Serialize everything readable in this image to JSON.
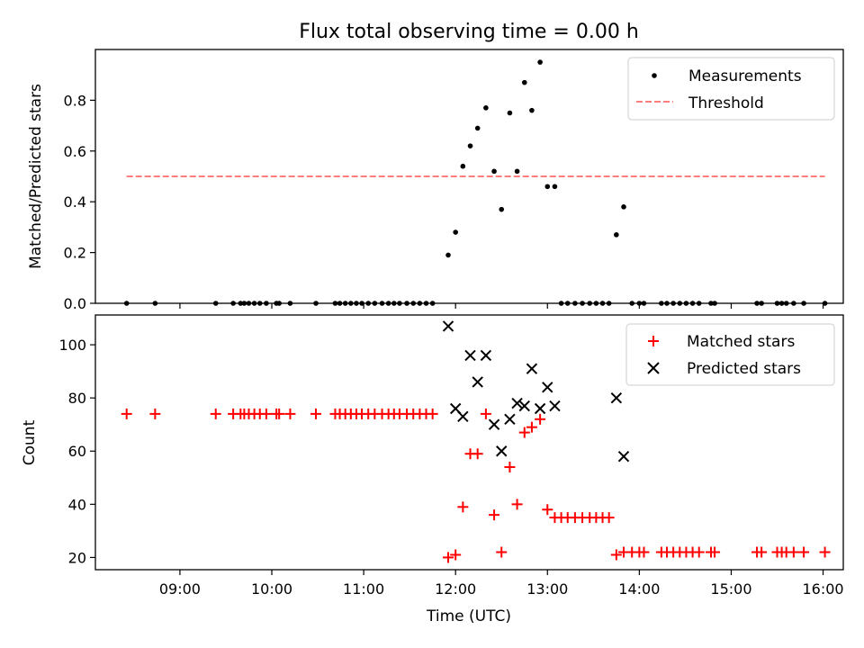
{
  "title": "Flux total observing time = 0.00 h",
  "colors": {
    "measurements": "#000000",
    "threshold": "#ff7f7f",
    "matched": "#ff0000",
    "predicted": "#000000"
  },
  "chart_data": [
    {
      "type": "scatter",
      "ylabel": "Matched/Predicted stars",
      "xlim": [
        8.08,
        16.22
      ],
      "ylim": [
        0,
        1.0
      ],
      "yticks": [
        0.0,
        0.2,
        0.4,
        0.6,
        0.8
      ],
      "ytick_labels": [
        "0.0",
        "0.2",
        "0.4",
        "0.6",
        "0.8"
      ],
      "legend": {
        "placement": "upper right",
        "entries": [
          "Measurements",
          "Threshold"
        ]
      },
      "threshold": {
        "name": "Threshold",
        "y": 0.5,
        "x_range": [
          8.42,
          16.02
        ]
      },
      "series": [
        {
          "name": "Measurements",
          "x": [
            8.42,
            8.73,
            9.39,
            9.58,
            9.66,
            9.7,
            9.75,
            9.81,
            9.87,
            9.94,
            10.05,
            10.08,
            10.2,
            10.48,
            10.69,
            10.74,
            10.8,
            10.86,
            10.92,
            10.98,
            11.05,
            11.12,
            11.2,
            11.27,
            11.33,
            11.39,
            11.47,
            11.54,
            11.61,
            11.68,
            11.75,
            11.92,
            12.0,
            12.08,
            12.16,
            12.24,
            12.33,
            12.42,
            12.5,
            12.59,
            12.67,
            12.75,
            12.83,
            12.92,
            13.0,
            13.08,
            13.15,
            13.22,
            13.3,
            13.38,
            13.46,
            13.53,
            13.6,
            13.67,
            13.75,
            13.83,
            13.92,
            14.0,
            14.05,
            14.24,
            14.3,
            14.37,
            14.44,
            14.51,
            14.58,
            14.65,
            14.78,
            14.82,
            15.28,
            15.33,
            15.5,
            15.55,
            15.6,
            15.68,
            15.79,
            16.02
          ],
          "y": [
            0,
            0,
            0,
            0,
            0,
            0,
            0,
            0,
            0,
            0,
            0,
            0,
            0,
            0,
            0,
            0,
            0,
            0,
            0,
            0,
            0,
            0,
            0,
            0,
            0,
            0,
            0,
            0,
            0,
            0,
            0,
            0.19,
            0.28,
            0.54,
            0.62,
            0.69,
            0.77,
            0.52,
            0.37,
            0.75,
            0.52,
            0.87,
            0.76,
            0.95,
            0.46,
            0.46,
            0,
            0,
            0,
            0,
            0,
            0,
            0,
            0,
            0.27,
            0.38,
            0,
            0,
            0,
            0,
            0,
            0,
            0,
            0,
            0,
            0,
            0,
            0,
            0,
            0,
            0,
            0,
            0,
            0,
            0,
            0
          ]
        }
      ]
    },
    {
      "type": "scatter",
      "xlabel": "Time (UTC)",
      "ylabel": "Count",
      "xlim": [
        8.08,
        16.22
      ],
      "ylim": [
        15.4,
        111.2
      ],
      "xticks": [
        9,
        10,
        11,
        12,
        13,
        14,
        15,
        16
      ],
      "xtick_labels": [
        "09:00",
        "10:00",
        "11:00",
        "12:00",
        "13:00",
        "14:00",
        "15:00",
        "16:00"
      ],
      "yticks": [
        20,
        40,
        60,
        80,
        100
      ],
      "ytick_labels": [
        "20",
        "40",
        "60",
        "80",
        "100"
      ],
      "legend": {
        "placement": "upper right",
        "entries": [
          "Matched stars",
          "Predicted stars"
        ]
      },
      "series": [
        {
          "name": "Matched stars",
          "x": [
            8.42,
            8.73,
            9.39,
            9.58,
            9.66,
            9.7,
            9.75,
            9.81,
            9.87,
            9.94,
            10.05,
            10.08,
            10.2,
            10.48,
            10.69,
            10.74,
            10.8,
            10.86,
            10.92,
            10.98,
            11.05,
            11.12,
            11.2,
            11.27,
            11.33,
            11.39,
            11.47,
            11.54,
            11.61,
            11.68,
            11.75,
            11.92,
            12.0,
            12.08,
            12.16,
            12.24,
            12.33,
            12.42,
            12.5,
            12.59,
            12.67,
            12.75,
            12.83,
            12.92,
            13.0,
            13.08,
            13.15,
            13.22,
            13.3,
            13.38,
            13.46,
            13.53,
            13.6,
            13.67,
            13.75,
            13.83,
            13.92,
            14.0,
            14.05,
            14.24,
            14.3,
            14.37,
            14.44,
            14.51,
            14.58,
            14.65,
            14.78,
            14.82,
            15.28,
            15.33,
            15.5,
            15.55,
            15.6,
            15.68,
            15.79,
            16.02
          ],
          "y": [
            74,
            74,
            74,
            74,
            74,
            74,
            74,
            74,
            74,
            74,
            74,
            74,
            74,
            74,
            74,
            74,
            74,
            74,
            74,
            74,
            74,
            74,
            74,
            74,
            74,
            74,
            74,
            74,
            74,
            74,
            74,
            20,
            21,
            39,
            59,
            59,
            74,
            36,
            22,
            54,
            40,
            67,
            69,
            72,
            38,
            35,
            35,
            35,
            35,
            35,
            35,
            35,
            35,
            35,
            21,
            22,
            22,
            22,
            22,
            22,
            22,
            22,
            22,
            22,
            22,
            22,
            22,
            22,
            22,
            22,
            22,
            22,
            22,
            22,
            22,
            22
          ]
        },
        {
          "name": "Predicted stars",
          "x": [
            11.92,
            12.0,
            12.08,
            12.16,
            12.24,
            12.33,
            12.42,
            12.5,
            12.59,
            12.67,
            12.75,
            12.83,
            12.92,
            13.0,
            13.08,
            13.75,
            13.83
          ],
          "y": [
            107,
            76,
            73,
            96,
            86,
            96,
            70,
            60,
            72,
            78,
            77,
            91,
            76,
            84,
            77,
            80,
            58
          ]
        }
      ]
    }
  ]
}
